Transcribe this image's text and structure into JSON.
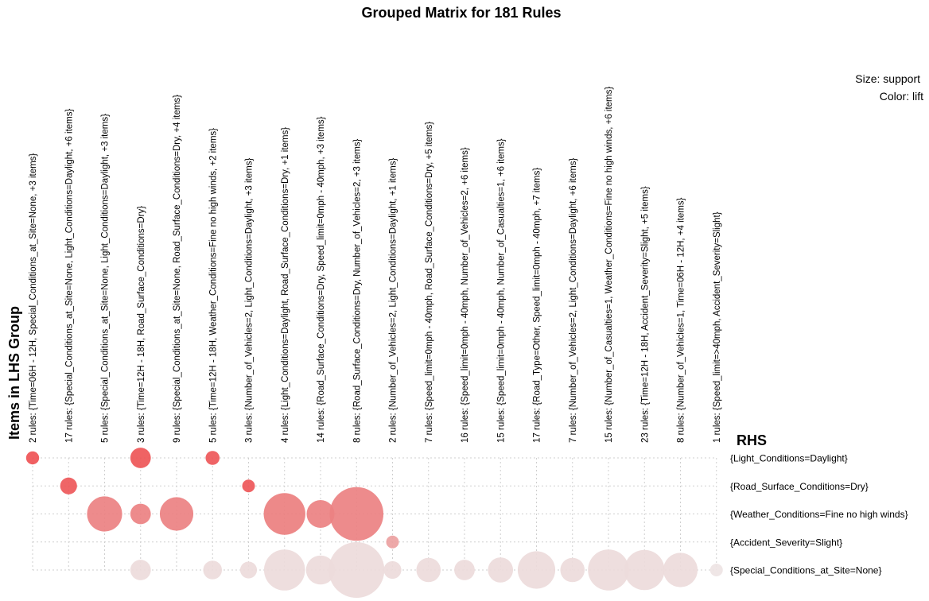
{
  "chart_data": {
    "type": "scatter",
    "title": "Grouped Matrix for 181 Rules",
    "xlabel": "Items in LHS Group",
    "ylabel": "RHS",
    "legend": [
      "Size: support",
      "Color: lift"
    ],
    "legend_position": "top-right",
    "lhs_groups": [
      "2 rules: {Time=06H - 12H, Special_Conditions_at_Site=None, +3 items}",
      "17 rules: {Special_Conditions_at_Site=None, Light_Conditions=Daylight, +6 items}",
      "5 rules: {Special_Conditions_at_Site=None, Light_Conditions=Daylight, +3 items}",
      "3 rules: {Time=12H - 18H, Road_Surface_Conditions=Dry}",
      "9 rules: {Special_Conditions_at_Site=None, Road_Surface_Conditions=Dry, +4 items}",
      "5 rules: {Time=12H - 18H, Weather_Conditions=Fine no high winds, +2 items}",
      "3 rules: {Number_of_Vehicles=2, Light_Conditions=Daylight, +3 items}",
      "4 rules: {Light_Conditions=Daylight, Road_Surface_Conditions=Dry, +1 items}",
      "14 rules: {Road_Surface_Conditions=Dry, Speed_limit=0mph - 40mph, +3 items}",
      "8 rules: {Road_Surface_Conditions=Dry, Number_of_Vehicles=2, +3 items}",
      "2 rules: {Number_of_Vehicles=2, Light_Conditions=Daylight, +1 items}",
      "7 rules: {Speed_limit=0mph - 40mph, Road_Surface_Conditions=Dry, +5 items}",
      "16 rules: {Speed_limit=0mph - 40mph, Number_of_Vehicles=2, +6 items}",
      "15 rules: {Speed_limit=0mph - 40mph, Number_of_Casualties=1, +6 items}",
      "17 rules: {Road_Type=Other, Speed_limit=0mph - 40mph, +7 items}",
      "7 rules: {Number_of_Vehicles=2, Light_Conditions=Daylight, +6 items}",
      "15 rules: {Number_of_Casualties=1, Weather_Conditions=Fine no high winds, +6 items}",
      "23 rules: {Time=12H - 18H, Accident_Severity=Slight, +5 items}",
      "8 rules: {Number_of_Vehicles=1, Time=06H - 12H, +4 items}",
      "1 rules: {Speed_limit=>40mph, Accident_Severity=Slight}"
    ],
    "rhs_items": [
      "{Light_Conditions=Daylight}",
      "{Road_Surface_Conditions=Dry}",
      "{Weather_Conditions=Fine no high winds}",
      "{Accident_Severity=Slight}",
      "{Special_Conditions_at_Site=None}"
    ],
    "points": [
      {
        "lhs": 0,
        "rhs": 0,
        "support": 0.12,
        "lift": 0.96
      },
      {
        "lhs": 3,
        "rhs": 0,
        "support": 0.3,
        "lift": 0.94
      },
      {
        "lhs": 5,
        "rhs": 0,
        "support": 0.14,
        "lift": 0.93
      },
      {
        "lhs": 1,
        "rhs": 1,
        "support": 0.2,
        "lift": 0.92
      },
      {
        "lhs": 6,
        "rhs": 1,
        "support": 0.1,
        "lift": 0.93
      },
      {
        "lhs": 2,
        "rhs": 2,
        "support": 0.88,
        "lift": 0.6
      },
      {
        "lhs": 3,
        "rhs": 2,
        "support": 0.3,
        "lift": 0.6
      },
      {
        "lhs": 4,
        "rhs": 2,
        "support": 0.8,
        "lift": 0.6
      },
      {
        "lhs": 7,
        "rhs": 2,
        "support": 1.23,
        "lift": 0.62
      },
      {
        "lhs": 8,
        "rhs": 2,
        "support": 0.55,
        "lift": 0.6
      },
      {
        "lhs": 9,
        "rhs": 2,
        "support": 2.05,
        "lift": 0.6
      },
      {
        "lhs": 10,
        "rhs": 3,
        "support": 0.1,
        "lift": 0.4
      },
      {
        "lhs": 3,
        "rhs": 4,
        "support": 0.3,
        "lift": 0.1
      },
      {
        "lhs": 5,
        "rhs": 4,
        "support": 0.25,
        "lift": 0.1
      },
      {
        "lhs": 6,
        "rhs": 4,
        "support": 0.2,
        "lift": 0.1
      },
      {
        "lhs": 7,
        "rhs": 4,
        "support": 1.2,
        "lift": 0.1
      },
      {
        "lhs": 8,
        "rhs": 4,
        "support": 0.6,
        "lift": 0.1
      },
      {
        "lhs": 9,
        "rhs": 4,
        "support": 2.2,
        "lift": 0.1
      },
      {
        "lhs": 10,
        "rhs": 4,
        "support": 0.22,
        "lift": 0.1
      },
      {
        "lhs": 11,
        "rhs": 4,
        "support": 0.42,
        "lift": 0.1
      },
      {
        "lhs": 12,
        "rhs": 4,
        "support": 0.3,
        "lift": 0.1
      },
      {
        "lhs": 13,
        "rhs": 4,
        "support": 0.45,
        "lift": 0.1
      },
      {
        "lhs": 14,
        "rhs": 4,
        "support": 1.0,
        "lift": 0.1
      },
      {
        "lhs": 15,
        "rhs": 4,
        "support": 0.42,
        "lift": 0.1
      },
      {
        "lhs": 16,
        "rhs": 4,
        "support": 1.2,
        "lift": 0.1
      },
      {
        "lhs": 17,
        "rhs": 4,
        "support": 1.15,
        "lift": 0.1
      },
      {
        "lhs": 18,
        "rhs": 4,
        "support": 0.84,
        "lift": 0.1
      },
      {
        "lhs": 19,
        "rhs": 4,
        "support": 0.1,
        "lift": 0.05
      }
    ],
    "color_scale": {
      "low": "#eeeeee",
      "mid": "#ea8e8e",
      "high": "#ef4e50"
    },
    "grid": true
  }
}
